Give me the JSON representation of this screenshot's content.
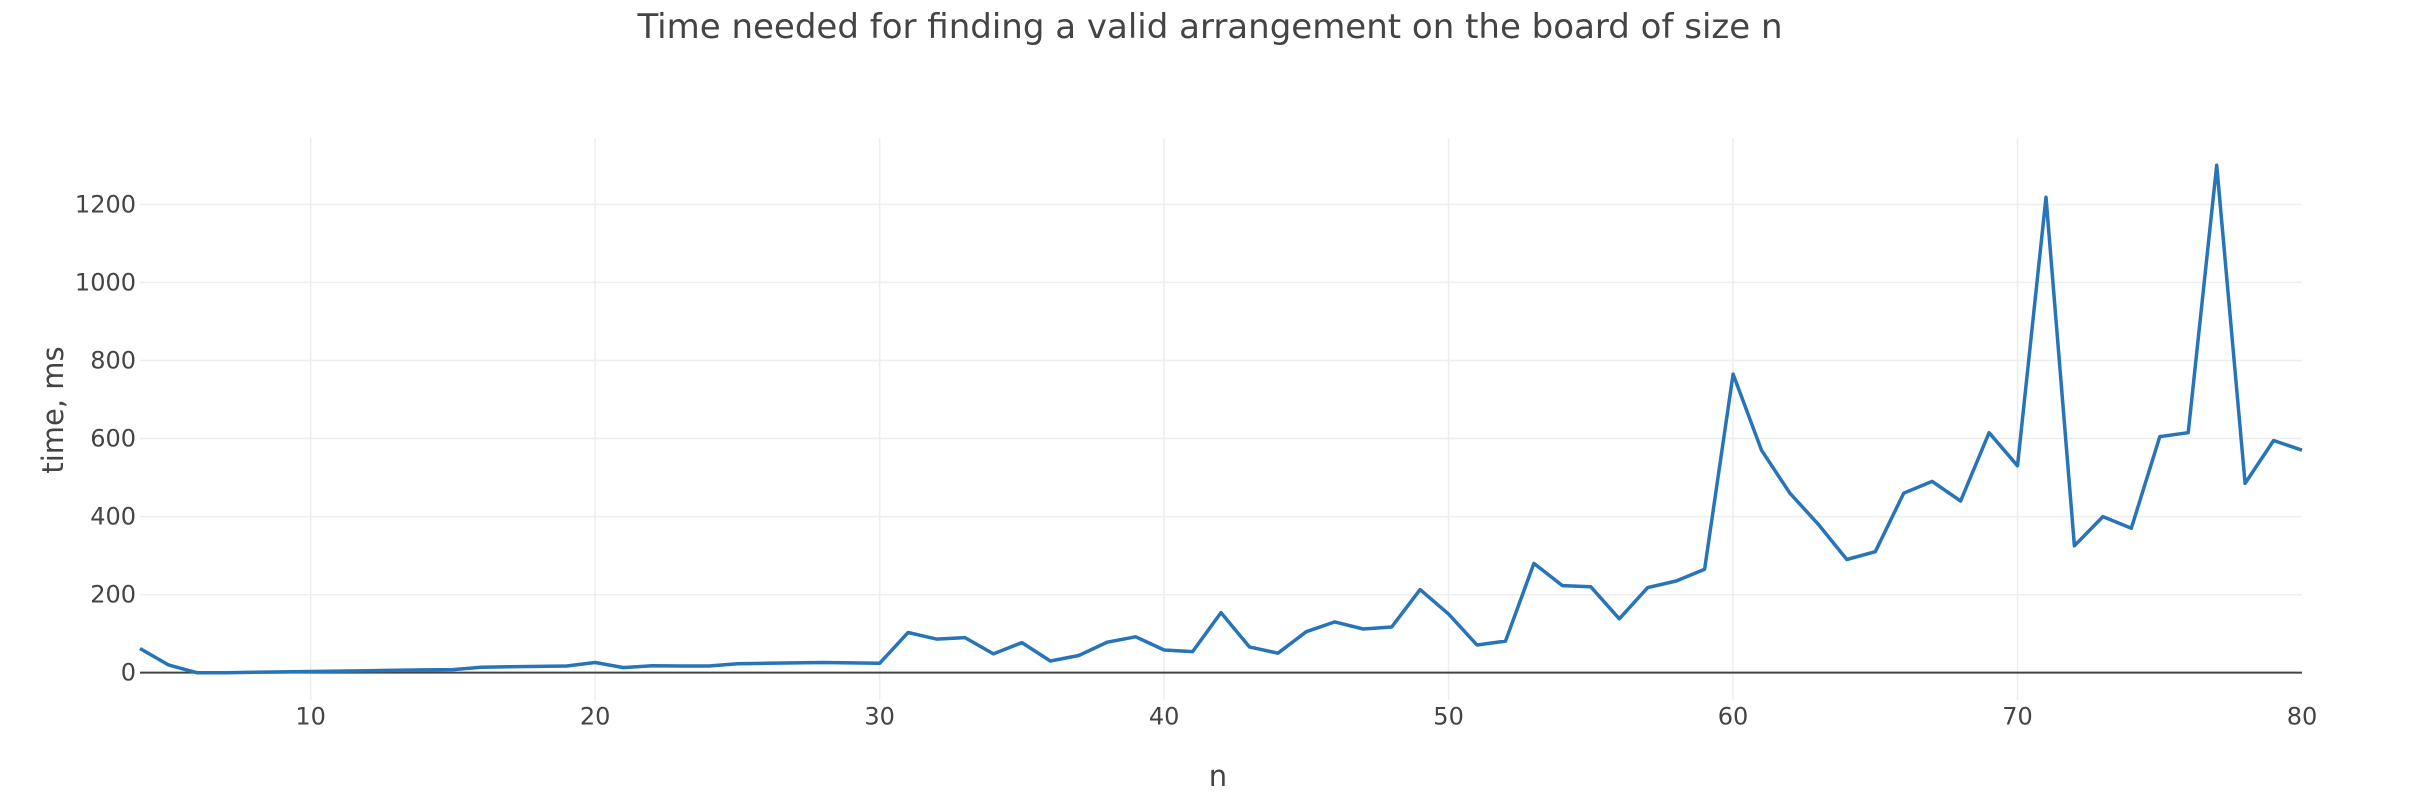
{
  "chart_data": {
    "type": "line",
    "title": "Time needed for finding a valid arrangement on the board of size n",
    "xlabel": "n",
    "ylabel": "time, ms",
    "xlim": [
      4,
      80
    ],
    "ylim": [
      -70,
      1370
    ],
    "x_ticks": [
      10,
      20,
      30,
      40,
      50,
      60,
      70,
      80
    ],
    "y_ticks": [
      0,
      200,
      400,
      600,
      800,
      1000,
      1200
    ],
    "grid": true,
    "legend": "none",
    "color": "#2874b8",
    "series": [
      {
        "x": [
          4,
          5,
          6,
          7,
          8,
          9,
          10,
          11,
          12,
          13,
          14,
          15,
          16,
          17,
          18,
          19,
          20,
          21,
          22,
          23,
          24,
          25,
          26,
          27,
          28,
          29,
          30,
          31,
          32,
          33,
          34,
          35,
          36,
          37,
          38,
          39,
          40,
          41,
          42,
          43,
          44,
          45,
          46,
          47,
          48,
          49,
          50,
          51,
          52,
          53,
          54,
          55,
          56,
          57,
          58,
          59,
          60,
          61,
          62,
          63,
          64,
          65,
          66,
          67,
          68,
          69,
          70,
          71,
          72,
          73,
          74,
          75,
          76,
          77,
          78,
          79,
          80
        ],
        "values": [
          62,
          20,
          0,
          0,
          1,
          2,
          3,
          4,
          5,
          6,
          7,
          8,
          14,
          15,
          16,
          17,
          26,
          13,
          18,
          17,
          17,
          23,
          24,
          25,
          26,
          25,
          24,
          103,
          86,
          90,
          48,
          77,
          30,
          44,
          78,
          92,
          58,
          54,
          154,
          66,
          50,
          105,
          130,
          112,
          117,
          213,
          150,
          71,
          81,
          280,
          223,
          220,
          138,
          218,
          235,
          265,
          765,
          570,
          460,
          380,
          290,
          310,
          460,
          490,
          440,
          615,
          530,
          1218,
          325,
          400,
          370,
          605,
          615,
          1300,
          485,
          595,
          570
        ]
      }
    ]
  }
}
